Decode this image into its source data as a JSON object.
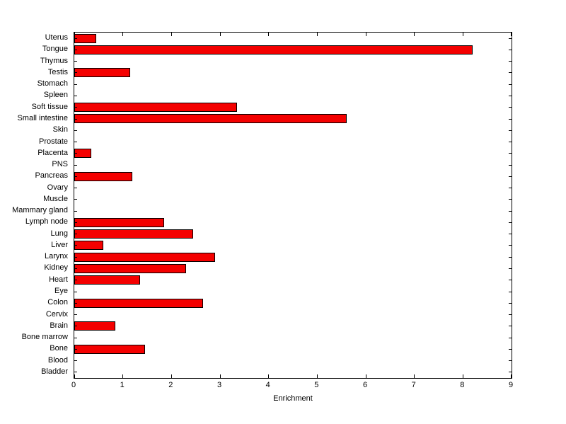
{
  "chart_data": {
    "type": "bar",
    "orientation": "horizontal",
    "title": "",
    "xlabel": "Enrichment",
    "ylabel": "",
    "xlim": [
      0,
      9
    ],
    "xticks": [
      0,
      1,
      2,
      3,
      4,
      5,
      6,
      7,
      8,
      9
    ],
    "bar_color": "#f40000",
    "bar_edge_color": "#000000",
    "grid": false,
    "legend": false,
    "categories": [
      "Uterus",
      "Tongue",
      "Thymus",
      "Testis",
      "Stomach",
      "Spleen",
      "Soft tissue",
      "Small intestine",
      "Skin",
      "Prostate",
      "Placenta",
      "PNS",
      "Pancreas",
      "Ovary",
      "Muscle",
      "Mammary gland",
      "Lymph node",
      "Lung",
      "Liver",
      "Larynx",
      "Kidney",
      "Heart",
      "Eye",
      "Colon",
      "Cervix",
      "Brain",
      "Bone marrow",
      "Bone",
      "Blood",
      "Bladder"
    ],
    "values": [
      0.45,
      8.2,
      0,
      1.15,
      0,
      0,
      3.35,
      5.6,
      0,
      0,
      0.35,
      0,
      1.2,
      0,
      0,
      0,
      1.85,
      2.45,
      0.6,
      2.9,
      2.3,
      1.35,
      0,
      2.65,
      0,
      0.85,
      0,
      1.45,
      0,
      0
    ],
    "category_order_note": "listed top-to-bottom as rendered"
  }
}
